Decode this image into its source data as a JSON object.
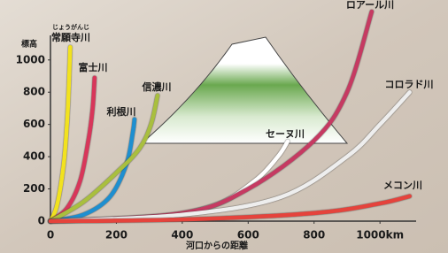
{
  "chart_data": {
    "type": "line",
    "y_label": "標高",
    "x_label": "河口からの距離",
    "xlim": [
      0,
      1150
    ],
    "ylim": [
      0,
      1350
    ],
    "xticks": [
      0,
      200,
      400,
      600,
      800,
      {
        "value": 1000,
        "label": "1000km"
      }
    ],
    "yticks": [
      0,
      200,
      400,
      600,
      800,
      1000
    ],
    "series": [
      {
        "name": "常願寺川",
        "reading": "じょうがんじ",
        "color": "#f2e21e",
        "x": [
          0,
          20,
          40,
          50,
          55,
          60
        ],
        "values": [
          0,
          100,
          350,
          600,
          800,
          1080
        ]
      },
      {
        "name": "富士川",
        "color": "#d8365a",
        "x": [
          0,
          50,
          90,
          115,
          128,
          134
        ],
        "values": [
          0,
          80,
          250,
          500,
          700,
          890
        ]
      },
      {
        "name": "利根川",
        "color": "#1e8fd0",
        "x": [
          0,
          100,
          180,
          230,
          250,
          255
        ],
        "values": [
          0,
          40,
          150,
          350,
          550,
          632
        ]
      },
      {
        "name": "信濃川",
        "color": "#a9bf3e",
        "x": [
          0,
          100,
          200,
          270,
          305,
          325
        ],
        "values": [
          0,
          120,
          300,
          450,
          600,
          780
        ]
      },
      {
        "name": "セーヌ川",
        "color": "#ffffff",
        "x": [
          0,
          300,
          500,
          620,
          690,
          720
        ],
        "values": [
          0,
          20,
          100,
          250,
          400,
          495
        ]
      },
      {
        "name": "ロアール川",
        "color": "#c63a62",
        "x": [
          0,
          400,
          600,
          800,
          900,
          975
        ],
        "values": [
          0,
          50,
          200,
          500,
          800,
          1300
        ]
      },
      {
        "name": "コロラド川",
        "color": "#eeeeee",
        "x": [
          0,
          400,
          700,
          900,
          1000,
          1090
        ],
        "values": [
          0,
          40,
          150,
          400,
          600,
          800
        ]
      },
      {
        "name": "メコン川",
        "color": "#e5433c",
        "x": [
          0,
          400,
          800,
          1000,
          1090
        ],
        "values": [
          0,
          10,
          50,
          110,
          155
        ]
      }
    ]
  }
}
